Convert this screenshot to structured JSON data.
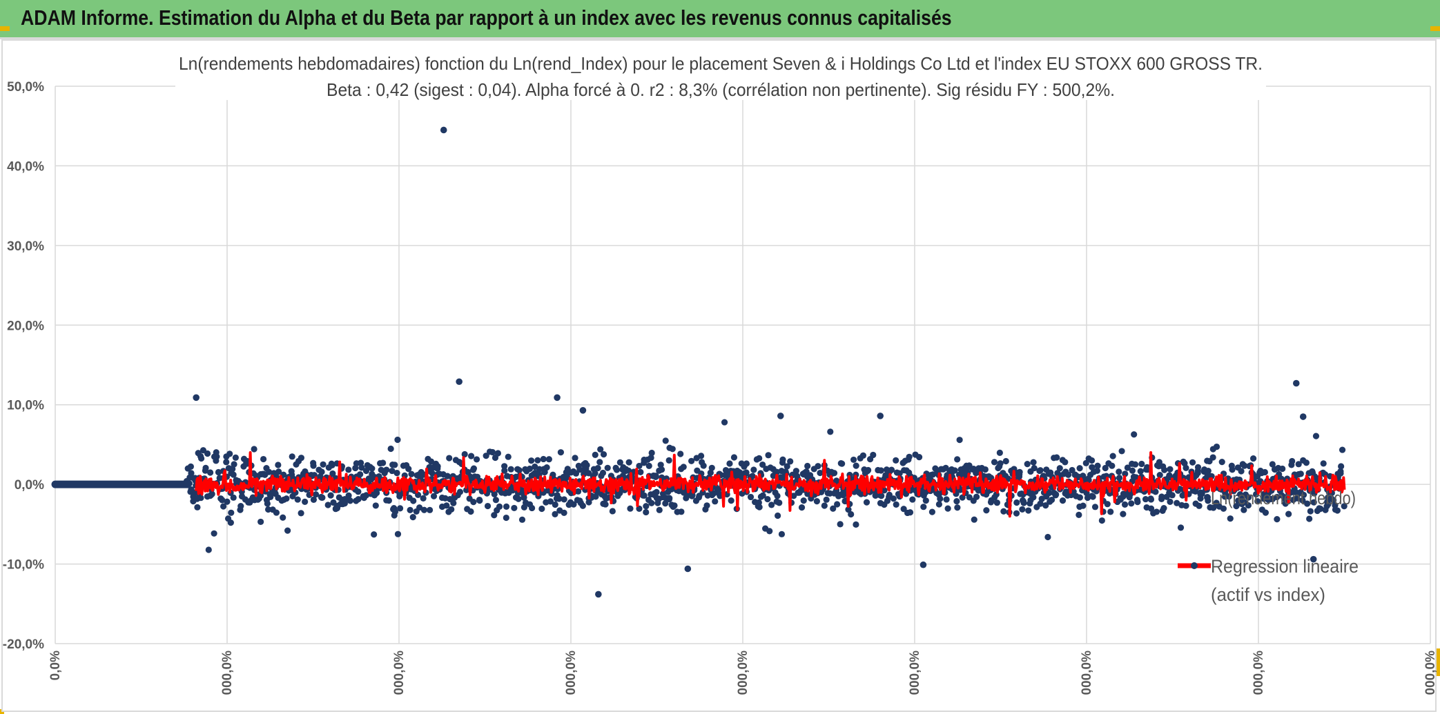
{
  "header": {
    "title": "ADAM Informe. Estimation du Alpha et du Beta par rapport à un index avec les revenus connus capitalisés",
    "background_color": "#7cc77c"
  },
  "chart_data": {
    "type": "scatter",
    "title": "Ln(rendements hebdomadaires) fonction du Ln(rend_Index) pour le placement Seven & i Holdings Co Ltd et l'index EU STOXX 600 GROSS TR.",
    "subtitle": "Beta : 0,42 (sigest : 0,04). Alpha forcé à 0. r2 : 8,3% (corrélation non pertinente). Sig résidu FY : 500,2%.",
    "xlabel": "",
    "ylabel": "",
    "ylim": [
      -20,
      50
    ],
    "y_ticks": [
      50,
      40,
      30,
      20,
      10,
      0,
      -10,
      -20
    ],
    "y_tick_labels": [
      "50,0%",
      "40,0%",
      "30,0%",
      "20,0%",
      "10,0%",
      "0,0%",
      "-10,0%",
      "-20,0%"
    ],
    "xlim": [
      0,
      8
    ],
    "x_ticks": [
      0,
      1,
      2,
      3,
      4,
      5,
      6,
      7,
      8
    ],
    "x_tick_labels": [
      "0,0%",
      "000,0%",
      "000,0%",
      "000,0%",
      "000,0%",
      "000,0%",
      "000,0%",
      "000,0%",
      "000,0%"
    ],
    "grid": true,
    "legend_position": "right",
    "series": [
      {
        "name": "Ln(rendement hebdo)",
        "color": "#203864",
        "marker": "circle",
        "flat_segment": {
          "x_start": 0,
          "x_end": 0.77,
          "y": 0
        },
        "scatter_range": {
          "x_start": 0.77,
          "x_end": 7.5,
          "y_min": -10,
          "y_max": 8
        },
        "outliers": [
          {
            "x": 2.26,
            "y": 44.5
          },
          {
            "x": 2.35,
            "y": 12.9
          },
          {
            "x": 0.82,
            "y": 10.9
          },
          {
            "x": 2.92,
            "y": 10.9
          },
          {
            "x": 3.07,
            "y": 9.3
          },
          {
            "x": 7.22,
            "y": 12.7
          },
          {
            "x": 3.16,
            "y": -13.8
          },
          {
            "x": 3.68,
            "y": -10.6
          },
          {
            "x": 5.05,
            "y": -10.1
          },
          {
            "x": 7.32,
            "y": -9.4
          },
          {
            "x": 4.22,
            "y": 8.6
          },
          {
            "x": 4.8,
            "y": 8.6
          },
          {
            "x": 7.26,
            "y": 8.5
          }
        ]
      },
      {
        "name": "Regression lineaire (actif vs index)",
        "color": "#ff0000",
        "marker": "line",
        "range": {
          "x_start": 0.82,
          "x_end": 7.5,
          "amplitude": 2
        }
      }
    ],
    "legend": {
      "series_1_label": "Ln(rendement hebdo)",
      "series_2_label_line1": "Regression lineaire",
      "series_2_label_line2": "(actif vs index)"
    }
  }
}
